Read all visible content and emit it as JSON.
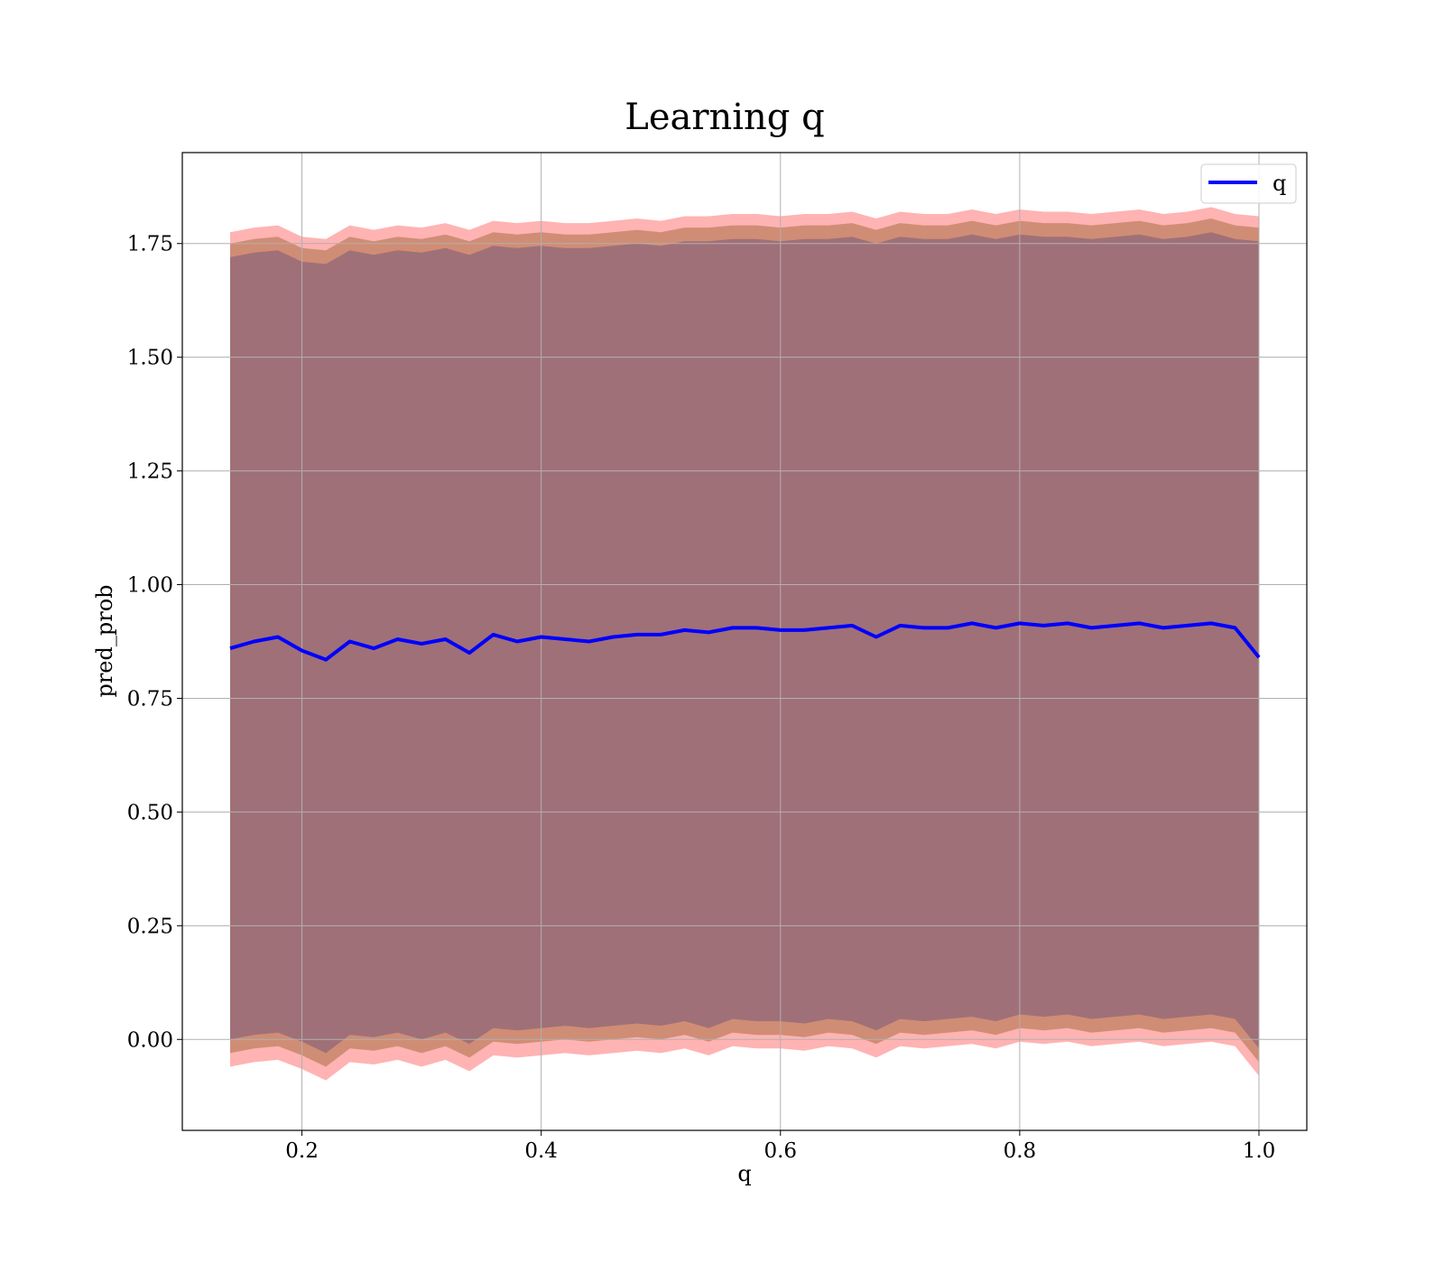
{
  "chart_data": {
    "type": "line",
    "title": "Learning q",
    "xlabel": "q",
    "ylabel": "pred_prob",
    "xlim": [
      0.1,
      1.04
    ],
    "ylim": [
      -0.2,
      1.95
    ],
    "x_ticks": [
      0.2,
      0.4,
      0.6,
      0.8,
      1.0
    ],
    "x_tick_labels": [
      "0.2",
      "0.4",
      "0.6",
      "0.8",
      "1.0"
    ],
    "y_ticks": [
      0.0,
      0.25,
      0.5,
      0.75,
      1.0,
      1.25,
      1.5,
      1.75
    ],
    "y_tick_labels": [
      "0.00",
      "0.25",
      "0.50",
      "0.75",
      "1.00",
      "1.25",
      "1.50",
      "1.75"
    ],
    "grid": true,
    "legend": {
      "position": "top-right",
      "entries": [
        "q"
      ]
    },
    "colors": {
      "line": "#0000ff",
      "outer_band": "#ff8080",
      "middle_band": "#c08060",
      "inner_band": "#a07078",
      "grid": "#b0b0b0"
    },
    "series": [
      {
        "name": "q",
        "x": [
          0.14,
          0.16,
          0.18,
          0.2,
          0.22,
          0.24,
          0.26,
          0.28,
          0.3,
          0.32,
          0.34,
          0.36,
          0.38,
          0.4,
          0.42,
          0.44,
          0.46,
          0.48,
          0.5,
          0.52,
          0.54,
          0.56,
          0.58,
          0.6,
          0.62,
          0.64,
          0.66,
          0.68,
          0.7,
          0.72,
          0.74,
          0.76,
          0.78,
          0.8,
          0.82,
          0.84,
          0.86,
          0.88,
          0.9,
          0.92,
          0.94,
          0.96,
          0.98,
          1.0
        ],
        "y": [
          0.86,
          0.875,
          0.885,
          0.855,
          0.835,
          0.875,
          0.86,
          0.88,
          0.87,
          0.88,
          0.85,
          0.89,
          0.875,
          0.885,
          0.88,
          0.875,
          0.885,
          0.89,
          0.89,
          0.9,
          0.895,
          0.905,
          0.905,
          0.9,
          0.9,
          0.905,
          0.91,
          0.885,
          0.91,
          0.905,
          0.905,
          0.915,
          0.905,
          0.915,
          0.91,
          0.915,
          0.905,
          0.91,
          0.915,
          0.905,
          0.91,
          0.915,
          0.905,
          0.84
        ]
      }
    ],
    "bands": {
      "outer": {
        "lower": [
          -0.06,
          -0.05,
          -0.045,
          -0.065,
          -0.09,
          -0.05,
          -0.055,
          -0.045,
          -0.06,
          -0.045,
          -0.07,
          -0.035,
          -0.04,
          -0.035,
          -0.03,
          -0.035,
          -0.03,
          -0.025,
          -0.03,
          -0.02,
          -0.035,
          -0.015,
          -0.02,
          -0.02,
          -0.025,
          -0.015,
          -0.02,
          -0.04,
          -0.015,
          -0.02,
          -0.015,
          -0.01,
          -0.02,
          -0.005,
          -0.01,
          -0.005,
          -0.015,
          -0.01,
          -0.005,
          -0.015,
          -0.01,
          -0.005,
          -0.015,
          -0.08
        ],
        "upper": [
          1.775,
          1.785,
          1.79,
          1.765,
          1.76,
          1.79,
          1.78,
          1.79,
          1.785,
          1.795,
          1.78,
          1.8,
          1.795,
          1.8,
          1.795,
          1.795,
          1.8,
          1.805,
          1.8,
          1.81,
          1.81,
          1.815,
          1.815,
          1.81,
          1.815,
          1.815,
          1.82,
          1.805,
          1.82,
          1.815,
          1.815,
          1.825,
          1.815,
          1.825,
          1.82,
          1.82,
          1.815,
          1.82,
          1.825,
          1.815,
          1.82,
          1.83,
          1.815,
          1.81
        ]
      },
      "middle": {
        "lower": [
          -0.03,
          -0.02,
          -0.015,
          -0.035,
          -0.06,
          -0.02,
          -0.025,
          -0.015,
          -0.03,
          -0.015,
          -0.04,
          -0.005,
          -0.01,
          -0.005,
          0.0,
          -0.005,
          0.0,
          0.005,
          0.0,
          0.01,
          -0.005,
          0.015,
          0.01,
          0.01,
          0.005,
          0.015,
          0.01,
          -0.01,
          0.015,
          0.01,
          0.015,
          0.02,
          0.01,
          0.025,
          0.02,
          0.025,
          0.015,
          0.02,
          0.025,
          0.015,
          0.02,
          0.025,
          0.015,
          -0.05
        ],
        "upper": [
          1.75,
          1.76,
          1.765,
          1.74,
          1.735,
          1.765,
          1.755,
          1.765,
          1.76,
          1.77,
          1.755,
          1.775,
          1.77,
          1.775,
          1.77,
          1.77,
          1.775,
          1.78,
          1.775,
          1.785,
          1.785,
          1.79,
          1.79,
          1.785,
          1.79,
          1.79,
          1.795,
          1.78,
          1.795,
          1.79,
          1.79,
          1.8,
          1.79,
          1.8,
          1.795,
          1.795,
          1.79,
          1.795,
          1.8,
          1.79,
          1.795,
          1.805,
          1.79,
          1.785
        ]
      },
      "inner": {
        "lower": [
          0.0,
          0.01,
          0.015,
          -0.005,
          -0.03,
          0.01,
          0.005,
          0.015,
          0.0,
          0.015,
          -0.01,
          0.025,
          0.02,
          0.025,
          0.03,
          0.025,
          0.03,
          0.035,
          0.03,
          0.04,
          0.025,
          0.045,
          0.04,
          0.04,
          0.035,
          0.045,
          0.04,
          0.02,
          0.045,
          0.04,
          0.045,
          0.05,
          0.04,
          0.055,
          0.05,
          0.055,
          0.045,
          0.05,
          0.055,
          0.045,
          0.05,
          0.055,
          0.045,
          -0.02
        ],
        "upper": [
          1.72,
          1.73,
          1.735,
          1.71,
          1.705,
          1.735,
          1.725,
          1.735,
          1.73,
          1.74,
          1.725,
          1.745,
          1.74,
          1.745,
          1.74,
          1.74,
          1.745,
          1.75,
          1.745,
          1.755,
          1.755,
          1.76,
          1.76,
          1.755,
          1.76,
          1.76,
          1.765,
          1.75,
          1.765,
          1.76,
          1.76,
          1.77,
          1.76,
          1.77,
          1.765,
          1.765,
          1.76,
          1.765,
          1.77,
          1.76,
          1.765,
          1.775,
          1.76,
          1.755
        ]
      }
    }
  }
}
